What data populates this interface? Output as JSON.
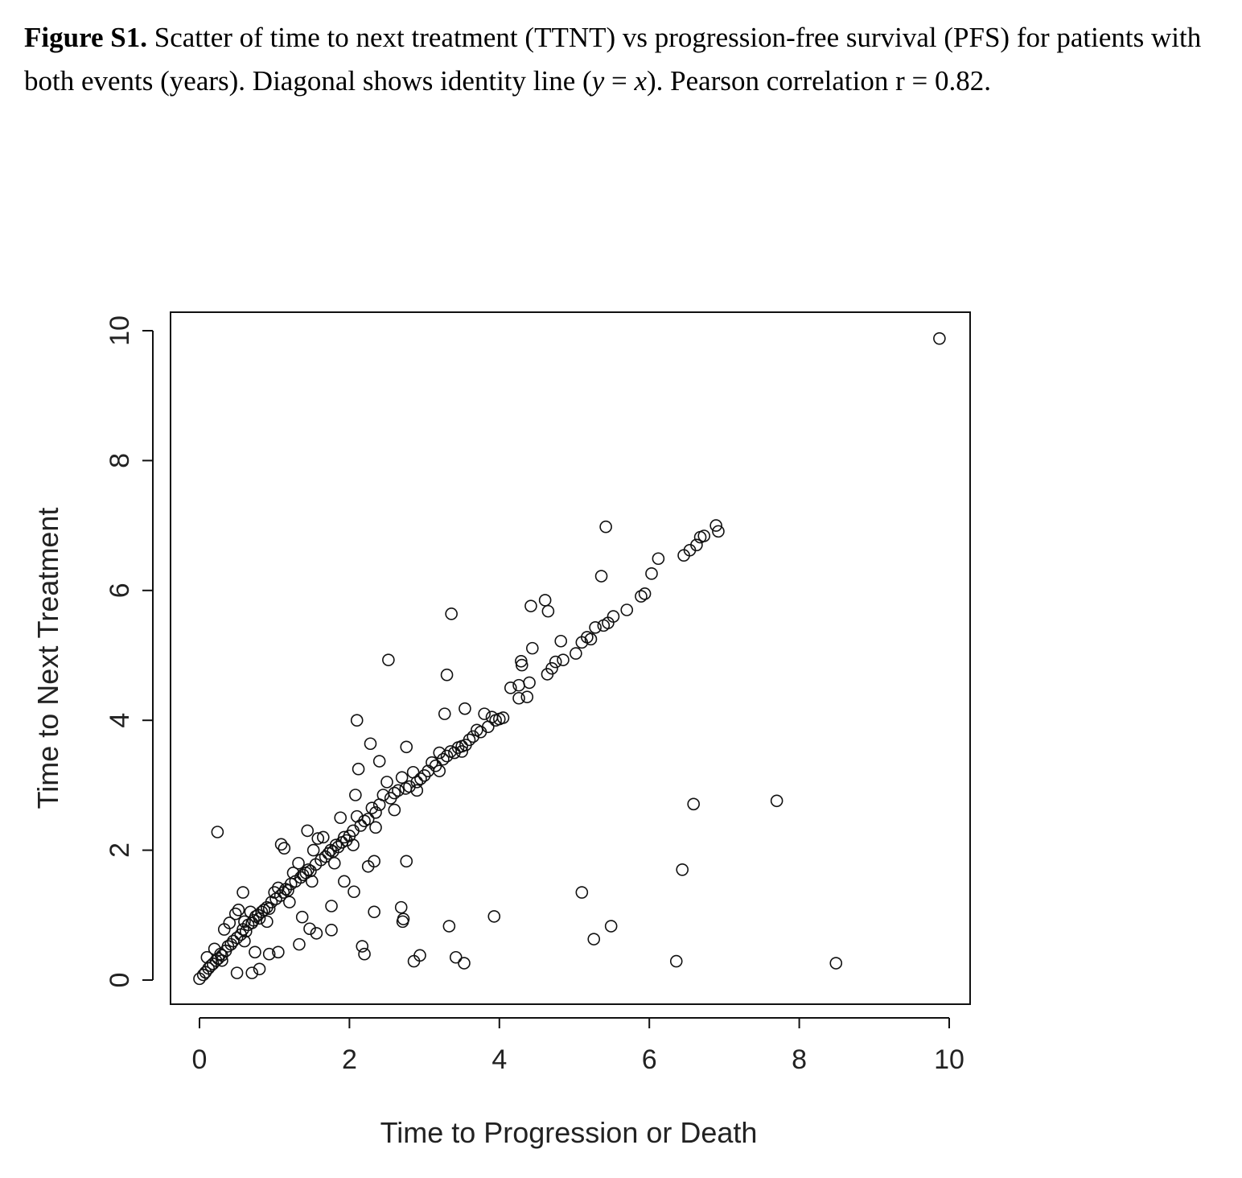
{
  "caption": {
    "label": "Figure S1.",
    "text_1": " Scatter of time to next treatment (TTNT) vs progression-free survival (PFS) for patients with both events (years). Diagonal shows identity line (",
    "var_y": "y",
    "text_2": " = ",
    "var_x": "x",
    "text_3": "). Pearson correlation r = 0.82."
  },
  "chart_data": {
    "type": "scatter",
    "title": "",
    "xlabel": "Time to Progression or Death",
    "ylabel": "Time to Next Treatment",
    "xlim": [
      -0.4,
      10.25
    ],
    "ylim": [
      -0.38,
      10.3
    ],
    "xticks": [
      0,
      2,
      4,
      6,
      8,
      10
    ],
    "yticks": [
      0,
      2,
      4,
      6,
      8,
      10
    ],
    "grid": false,
    "marker": "open-circle",
    "points": [
      [
        9.87,
        9.88
      ],
      [
        5.42,
        6.98
      ],
      [
        5.36,
        6.22
      ],
      [
        3.36,
        5.64
      ],
      [
        2.52,
        4.93
      ],
      [
        3.3,
        4.7
      ],
      [
        4.42,
        5.76
      ],
      [
        4.61,
        5.85
      ],
      [
        4.65,
        5.68
      ],
      [
        2.1,
        4.0
      ],
      [
        3.27,
        4.1
      ],
      [
        3.54,
        4.18
      ],
      [
        2.28,
        3.64
      ],
      [
        2.76,
        3.59
      ],
      [
        2.12,
        3.25
      ],
      [
        2.4,
        3.37
      ],
      [
        2.08,
        2.85
      ],
      [
        0.24,
        2.28
      ],
      [
        1.44,
        2.3
      ],
      [
        1.09,
        2.09
      ],
      [
        1.13,
        2.03
      ],
      [
        2.76,
        1.83
      ],
      [
        2.33,
        1.83
      ],
      [
        2.25,
        1.75
      ],
      [
        1.93,
        1.52
      ],
      [
        2.06,
        1.36
      ],
      [
        1.76,
        1.14
      ],
      [
        1.37,
        0.97
      ],
      [
        2.33,
        1.05
      ],
      [
        2.69,
        1.12
      ],
      [
        2.72,
        0.94
      ],
      [
        2.71,
        0.9
      ],
      [
        3.33,
        0.83
      ],
      [
        3.93,
        0.98
      ],
      [
        2.17,
        0.52
      ],
      [
        2.2,
        0.4
      ],
      [
        2.86,
        0.29
      ],
      [
        2.94,
        0.38
      ],
      [
        3.42,
        0.35
      ],
      [
        3.53,
        0.26
      ],
      [
        1.33,
        0.55
      ],
      [
        1.47,
        0.79
      ],
      [
        1.56,
        0.72
      ],
      [
        1.76,
        0.77
      ],
      [
        0.5,
        0.11
      ],
      [
        0.7,
        0.11
      ],
      [
        0.8,
        0.17
      ],
      [
        0.74,
        0.43
      ],
      [
        0.93,
        0.4
      ],
      [
        1.05,
        0.43
      ],
      [
        0.58,
        1.35
      ],
      [
        5.1,
        1.35
      ],
      [
        5.26,
        0.63
      ],
      [
        5.49,
        0.83
      ],
      [
        6.44,
        1.7
      ],
      [
        6.59,
        2.71
      ],
      [
        7.7,
        2.76
      ],
      [
        6.36,
        0.29
      ],
      [
        8.49,
        0.26
      ],
      [
        6.12,
        6.49
      ],
      [
        6.03,
        6.26
      ],
      [
        6.89,
        7.0
      ],
      [
        6.92,
        6.91
      ],
      [
        6.73,
        6.84
      ],
      [
        6.68,
        6.82
      ],
      [
        4.15,
        4.5
      ],
      [
        4.26,
        4.54
      ],
      [
        4.29,
        4.91
      ],
      [
        4.3,
        4.85
      ],
      [
        4.44,
        5.11
      ],
      [
        4.82,
        5.22
      ],
      [
        4.26,
        4.34
      ],
      [
        4.37,
        4.36
      ],
      [
        4.4,
        4.58
      ],
      [
        4.64,
        4.71
      ],
      [
        4.7,
        4.8
      ],
      [
        4.85,
        4.93
      ],
      [
        4.75,
        4.9
      ],
      [
        5.02,
        5.03
      ],
      [
        5.1,
        5.2
      ],
      [
        5.17,
        5.28
      ],
      [
        5.22,
        5.25
      ],
      [
        5.28,
        5.43
      ],
      [
        5.39,
        5.46
      ],
      [
        5.45,
        5.5
      ],
      [
        5.52,
        5.6
      ],
      [
        5.7,
        5.7
      ],
      [
        5.89,
        5.91
      ],
      [
        5.94,
        5.95
      ],
      [
        6.46,
        6.54
      ],
      [
        6.54,
        6.62
      ],
      [
        6.63,
        6.7
      ],
      [
        0.0,
        0.02
      ],
      [
        0.05,
        0.08
      ],
      [
        0.08,
        0.12
      ],
      [
        0.1,
        0.35
      ],
      [
        0.12,
        0.18
      ],
      [
        0.15,
        0.22
      ],
      [
        0.18,
        0.25
      ],
      [
        0.2,
        0.48
      ],
      [
        0.22,
        0.3
      ],
      [
        0.25,
        0.33
      ],
      [
        0.28,
        0.4
      ],
      [
        0.3,
        0.38
      ],
      [
        0.33,
        0.78
      ],
      [
        0.35,
        0.45
      ],
      [
        0.38,
        0.52
      ],
      [
        0.4,
        0.88
      ],
      [
        0.42,
        0.55
      ],
      [
        0.45,
        0.6
      ],
      [
        0.48,
        1.02
      ],
      [
        0.5,
        0.65
      ],
      [
        0.52,
        1.08
      ],
      [
        0.55,
        0.7
      ],
      [
        0.58,
        0.78
      ],
      [
        0.6,
        0.9
      ],
      [
        0.62,
        0.75
      ],
      [
        0.65,
        0.85
      ],
      [
        0.68,
        1.05
      ],
      [
        0.7,
        0.88
      ],
      [
        0.72,
        0.92
      ],
      [
        0.75,
        0.98
      ],
      [
        0.78,
        1.0
      ],
      [
        0.8,
        0.95
      ],
      [
        0.83,
        1.05
      ],
      [
        0.86,
        1.08
      ],
      [
        0.9,
        1.12
      ],
      [
        0.93,
        1.1
      ],
      [
        0.96,
        1.2
      ],
      [
        1.0,
        1.35
      ],
      [
        1.02,
        1.25
      ],
      [
        1.05,
        1.42
      ],
      [
        1.08,
        1.3
      ],
      [
        1.12,
        1.35
      ],
      [
        1.15,
        1.4
      ],
      [
        1.18,
        1.38
      ],
      [
        1.22,
        1.48
      ],
      [
        1.25,
        1.65
      ],
      [
        1.28,
        1.52
      ],
      [
        1.32,
        1.8
      ],
      [
        1.35,
        1.58
      ],
      [
        1.38,
        1.62
      ],
      [
        1.42,
        1.65
      ],
      [
        1.45,
        1.7
      ],
      [
        1.48,
        1.68
      ],
      [
        1.52,
        2.0
      ],
      [
        1.55,
        1.78
      ],
      [
        1.58,
        2.18
      ],
      [
        1.62,
        1.85
      ],
      [
        1.65,
        2.2
      ],
      [
        1.68,
        1.9
      ],
      [
        1.72,
        1.95
      ],
      [
        1.75,
        2.0
      ],
      [
        1.78,
        1.98
      ],
      [
        1.82,
        2.08
      ],
      [
        1.85,
        2.05
      ],
      [
        1.88,
        2.5
      ],
      [
        1.9,
        2.12
      ],
      [
        1.93,
        2.2
      ],
      [
        1.96,
        2.15
      ],
      [
        2.0,
        2.22
      ],
      [
        2.05,
        2.3
      ],
      [
        2.1,
        2.52
      ],
      [
        2.15,
        2.38
      ],
      [
        2.2,
        2.45
      ],
      [
        2.25,
        2.48
      ],
      [
        2.3,
        2.65
      ],
      [
        2.35,
        2.58
      ],
      [
        2.4,
        2.7
      ],
      [
        2.45,
        2.85
      ],
      [
        2.5,
        3.05
      ],
      [
        2.55,
        2.8
      ],
      [
        2.6,
        2.88
      ],
      [
        2.65,
        2.92
      ],
      [
        2.7,
        3.12
      ],
      [
        2.75,
        2.95
      ],
      [
        2.8,
        2.98
      ],
      [
        2.85,
        3.2
      ],
      [
        2.9,
        3.05
      ],
      [
        2.95,
        3.1
      ],
      [
        3.0,
        3.15
      ],
      [
        3.05,
        3.22
      ],
      [
        3.1,
        3.35
      ],
      [
        3.15,
        3.3
      ],
      [
        3.2,
        3.5
      ],
      [
        3.25,
        3.4
      ],
      [
        3.3,
        3.45
      ],
      [
        3.35,
        3.52
      ],
      [
        3.4,
        3.5
      ],
      [
        3.45,
        3.58
      ],
      [
        3.5,
        3.6
      ],
      [
        3.55,
        3.62
      ],
      [
        3.6,
        3.7
      ],
      [
        3.65,
        3.75
      ],
      [
        3.7,
        3.85
      ],
      [
        3.75,
        3.82
      ],
      [
        3.8,
        4.1
      ],
      [
        3.85,
        3.9
      ],
      [
        3.9,
        4.05
      ],
      [
        3.95,
        4.0
      ],
      [
        4.0,
        4.02
      ],
      [
        4.05,
        4.04
      ],
      [
        0.9,
        0.9
      ],
      [
        1.2,
        1.2
      ],
      [
        1.5,
        1.52
      ],
      [
        1.8,
        1.8
      ],
      [
        2.05,
        2.08
      ],
      [
        2.35,
        2.35
      ],
      [
        2.6,
        2.62
      ],
      [
        2.9,
        2.92
      ],
      [
        3.2,
        3.22
      ],
      [
        3.5,
        3.52
      ],
      [
        0.6,
        0.6
      ],
      [
        0.3,
        0.3
      ]
    ]
  }
}
